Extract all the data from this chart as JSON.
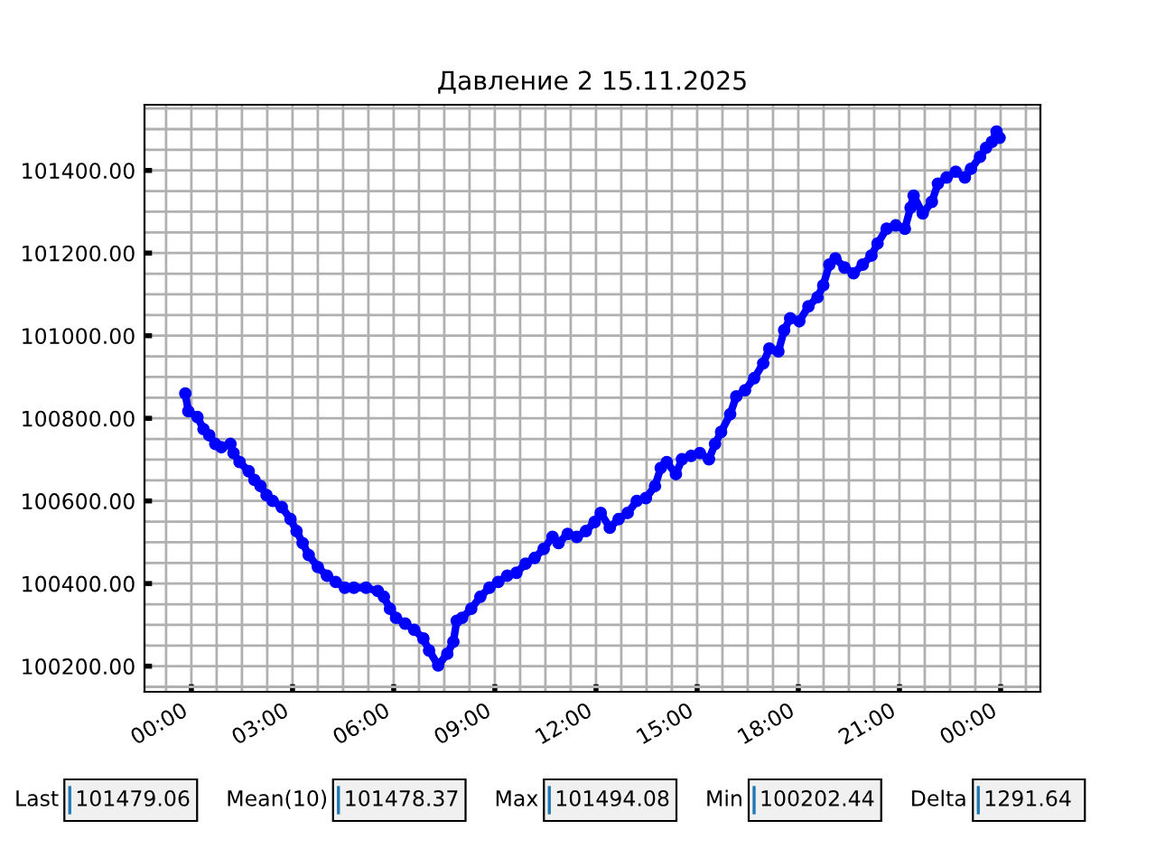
{
  "chart_data": {
    "type": "line",
    "title": "Давление 2 15.11.2025",
    "x": [
      -0.18,
      -0.09,
      0.18,
      0.36,
      0.53,
      0.71,
      0.89,
      1.16,
      1.25,
      1.43,
      1.7,
      1.87,
      2.05,
      2.23,
      2.41,
      2.68,
      2.94,
      3.12,
      3.3,
      3.48,
      3.75,
      4.02,
      4.28,
      4.55,
      4.82,
      5.18,
      5.53,
      5.71,
      5.89,
      6.07,
      6.34,
      6.61,
      6.88,
      7.05,
      7.32,
      7.59,
      7.77,
      7.87,
      8.03,
      8.3,
      8.57,
      8.84,
      9.1,
      9.37,
      9.64,
      9.91,
      10.18,
      10.45,
      10.71,
      10.89,
      11.16,
      11.43,
      11.7,
      11.96,
      12.14,
      12.41,
      12.67,
      12.94,
      13.21,
      13.48,
      13.75,
      13.92,
      14.1,
      14.37,
      14.55,
      14.82,
      15.08,
      15.35,
      15.53,
      15.71,
      15.98,
      16.16,
      16.42,
      16.69,
      16.96,
      17.14,
      17.41,
      17.58,
      17.76,
      18.03,
      18.3,
      18.57,
      18.74,
      18.92,
      19.1,
      19.37,
      19.64,
      19.91,
      20.17,
      20.35,
      20.62,
      20.89,
      21.16,
      21.33,
      21.42,
      21.69,
      21.96,
      22.14,
      22.4,
      22.67,
      22.94,
      23.12,
      23.39,
      23.57,
      23.74,
      23.88,
      23.97
    ],
    "series": [
      {
        "color": "#0000ff",
        "values": [
          100860,
          100817,
          100803,
          100774,
          100759,
          100738,
          100730,
          100738,
          100716,
          100694,
          100672,
          100651,
          100636,
          100614,
          100600,
          100585,
          100556,
          100527,
          100498,
          100469,
          100440,
          100419,
          100404,
          100390,
          100390,
          100390,
          100382,
          100368,
          100339,
          100317,
          100303,
          100288,
          100267,
          100238,
          100202,
          100230,
          100259,
          100310,
          100317,
          100339,
          100368,
          100390,
          100404,
          100419,
          100426,
          100448,
          100462,
          100484,
          100513,
          100498,
          100520,
          100513,
          100527,
          100549,
          100571,
          100535,
          100556,
          100571,
          100600,
          100607,
          100636,
          100680,
          100694,
          100665,
          100701,
          100709,
          100716,
          100701,
          100738,
          100767,
          100810,
          100853,
          100868,
          100897,
          100933,
          100969,
          100962,
          101013,
          101042,
          101035,
          101071,
          101093,
          101122,
          101172,
          101187,
          101165,
          101151,
          101172,
          101194,
          101223,
          101259,
          101267,
          101259,
          101310,
          101339,
          101296,
          101324,
          101368,
          101383,
          101397,
          101383,
          101404,
          101433,
          101455,
          101469,
          101494,
          101479
        ]
      }
    ],
    "marker": "circle",
    "line_style": "solid",
    "grid": true,
    "xlim": [
      -1.39,
      25.18
    ],
    "ylim": [
      100138,
      101559
    ],
    "xticks": [
      {
        "value": -0.75,
        "label": null
      },
      {
        "value": 0,
        "label": "00:00"
      },
      {
        "value": 0.75,
        "label": null
      },
      {
        "value": 1.5,
        "label": null
      },
      {
        "value": 2.25,
        "label": null
      },
      {
        "value": 3,
        "label": "03:00"
      },
      {
        "value": 3.75,
        "label": null
      },
      {
        "value": 4.5,
        "label": null
      },
      {
        "value": 5.25,
        "label": null
      },
      {
        "value": 6,
        "label": "06:00"
      },
      {
        "value": 6.75,
        "label": null
      },
      {
        "value": 7.5,
        "label": null
      },
      {
        "value": 8.25,
        "label": null
      },
      {
        "value": 9,
        "label": "09:00"
      },
      {
        "value": 9.75,
        "label": null
      },
      {
        "value": 10.5,
        "label": null
      },
      {
        "value": 11.25,
        "label": null
      },
      {
        "value": 12,
        "label": "12:00"
      },
      {
        "value": 12.75,
        "label": null
      },
      {
        "value": 13.5,
        "label": null
      },
      {
        "value": 14.25,
        "label": null
      },
      {
        "value": 15,
        "label": "15:00"
      },
      {
        "value": 15.75,
        "label": null
      },
      {
        "value": 16.5,
        "label": null
      },
      {
        "value": 17.25,
        "label": null
      },
      {
        "value": 18,
        "label": "18:00"
      },
      {
        "value": 18.75,
        "label": null
      },
      {
        "value": 19.5,
        "label": null
      },
      {
        "value": 20.25,
        "label": null
      },
      {
        "value": 21,
        "label": "21:00"
      },
      {
        "value": 21.75,
        "label": null
      },
      {
        "value": 22.5,
        "label": null
      },
      {
        "value": 23.25,
        "label": null
      },
      {
        "value": 24,
        "label": "00:00"
      },
      {
        "value": 24.75,
        "label": null
      }
    ],
    "yticks": [
      {
        "value": 100150,
        "label": null
      },
      {
        "value": 100200,
        "label": "100200.00"
      },
      {
        "value": 100250,
        "label": null
      },
      {
        "value": 100300,
        "label": null
      },
      {
        "value": 100350,
        "label": null
      },
      {
        "value": 100400,
        "label": "100400.00"
      },
      {
        "value": 100450,
        "label": null
      },
      {
        "value": 100500,
        "label": null
      },
      {
        "value": 100550,
        "label": null
      },
      {
        "value": 100600,
        "label": "100600.00"
      },
      {
        "value": 100650,
        "label": null
      },
      {
        "value": 100700,
        "label": null
      },
      {
        "value": 100750,
        "label": null
      },
      {
        "value": 100800,
        "label": "100800.00"
      },
      {
        "value": 100850,
        "label": null
      },
      {
        "value": 100900,
        "label": null
      },
      {
        "value": 100950,
        "label": null
      },
      {
        "value": 101000,
        "label": "101000.00"
      },
      {
        "value": 101050,
        "label": null
      },
      {
        "value": 101100,
        "label": null
      },
      {
        "value": 101150,
        "label": null
      },
      {
        "value": 101200,
        "label": "101200.00"
      },
      {
        "value": 101250,
        "label": null
      },
      {
        "value": 101300,
        "label": null
      },
      {
        "value": 101350,
        "label": null
      },
      {
        "value": 101400,
        "label": "101400.00"
      },
      {
        "value": 101450,
        "label": null
      },
      {
        "value": 101500,
        "label": null
      },
      {
        "value": 101550,
        "label": null
      }
    ],
    "annotations": [
      "Last",
      "101479.06",
      "Mean(10)",
      "101478.37",
      "Max",
      "101494.08",
      "Min",
      "100202.44",
      "Delta",
      "1291.64"
    ]
  }
}
